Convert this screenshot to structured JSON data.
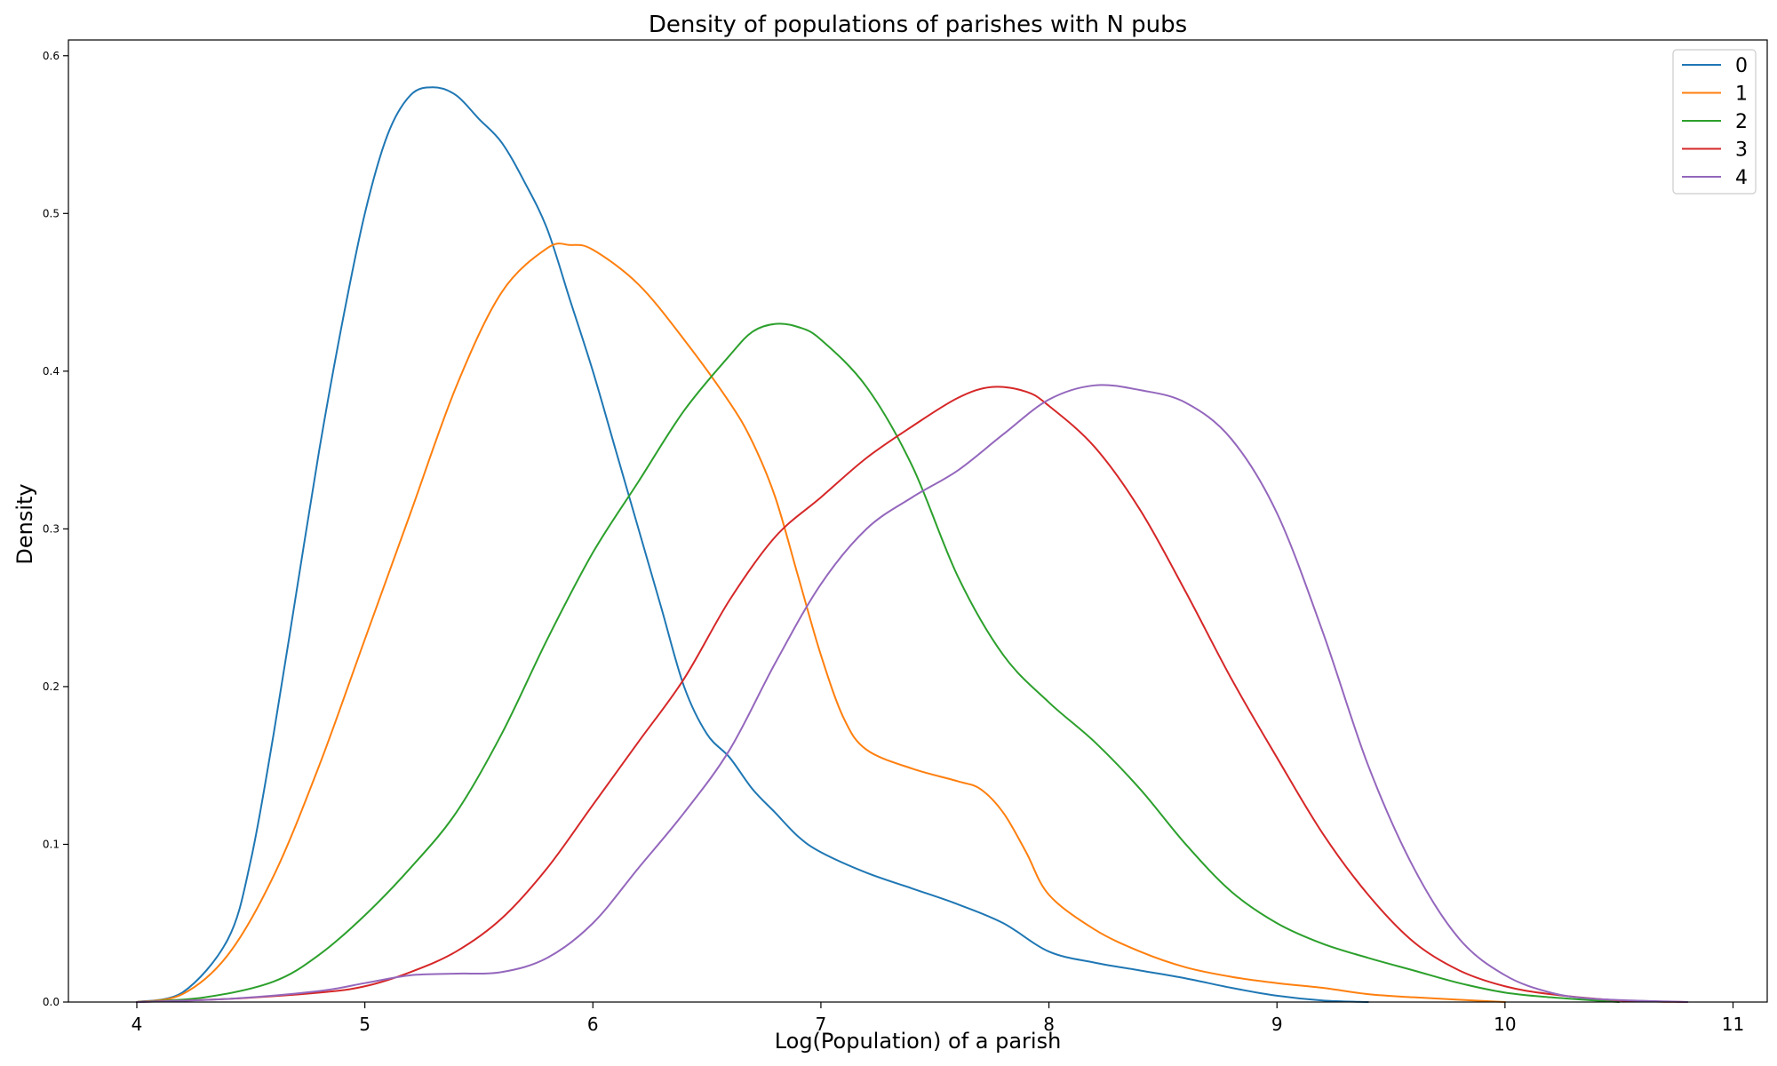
{
  "chart_data": {
    "type": "line",
    "title": "Density of populations of parishes with N pubs",
    "xlabel": "Log(Population) of a parish",
    "ylabel": "Density",
    "xlim": [
      3.7,
      11.15
    ],
    "ylim": [
      0,
      0.61
    ],
    "xticks": [
      4,
      5,
      6,
      7,
      8,
      9,
      10,
      11
    ],
    "yticks": [
      0.0,
      0.1,
      0.2,
      0.3,
      0.4,
      0.5,
      0.6
    ],
    "ytick_labels": [
      "0.0",
      "0.1",
      "0.2",
      "0.3",
      "0.4",
      "0.5",
      "0.6"
    ],
    "grid": false,
    "legend_position": "top-right",
    "series": [
      {
        "name": "0",
        "color": "#1f77b4",
        "points": [
          [
            4.0,
            0.0
          ],
          [
            4.2,
            0.006
          ],
          [
            4.4,
            0.04
          ],
          [
            4.5,
            0.09
          ],
          [
            4.6,
            0.17
          ],
          [
            4.7,
            0.26
          ],
          [
            4.8,
            0.35
          ],
          [
            4.9,
            0.43
          ],
          [
            5.0,
            0.5
          ],
          [
            5.1,
            0.55
          ],
          [
            5.2,
            0.575
          ],
          [
            5.3,
            0.58
          ],
          [
            5.4,
            0.575
          ],
          [
            5.5,
            0.56
          ],
          [
            5.6,
            0.545
          ],
          [
            5.7,
            0.52
          ],
          [
            5.8,
            0.49
          ],
          [
            5.9,
            0.445
          ],
          [
            6.0,
            0.4
          ],
          [
            6.1,
            0.35
          ],
          [
            6.2,
            0.3
          ],
          [
            6.3,
            0.25
          ],
          [
            6.4,
            0.2
          ],
          [
            6.5,
            0.17
          ],
          [
            6.6,
            0.155
          ],
          [
            6.7,
            0.135
          ],
          [
            6.8,
            0.12
          ],
          [
            6.9,
            0.105
          ],
          [
            7.0,
            0.095
          ],
          [
            7.2,
            0.082
          ],
          [
            7.4,
            0.072
          ],
          [
            7.6,
            0.062
          ],
          [
            7.8,
            0.05
          ],
          [
            8.0,
            0.032
          ],
          [
            8.2,
            0.025
          ],
          [
            8.4,
            0.02
          ],
          [
            8.6,
            0.015
          ],
          [
            8.8,
            0.009
          ],
          [
            9.0,
            0.004
          ],
          [
            9.2,
            0.001
          ],
          [
            9.4,
            0.0
          ]
        ]
      },
      {
        "name": "1",
        "color": "#ff7f0e",
        "points": [
          [
            4.0,
            0.0
          ],
          [
            4.2,
            0.005
          ],
          [
            4.4,
            0.03
          ],
          [
            4.6,
            0.08
          ],
          [
            4.8,
            0.15
          ],
          [
            5.0,
            0.23
          ],
          [
            5.2,
            0.31
          ],
          [
            5.4,
            0.39
          ],
          [
            5.6,
            0.45
          ],
          [
            5.8,
            0.478
          ],
          [
            5.9,
            0.48
          ],
          [
            6.0,
            0.477
          ],
          [
            6.2,
            0.455
          ],
          [
            6.4,
            0.42
          ],
          [
            6.6,
            0.38
          ],
          [
            6.7,
            0.355
          ],
          [
            6.8,
            0.32
          ],
          [
            6.9,
            0.27
          ],
          [
            7.0,
            0.22
          ],
          [
            7.1,
            0.18
          ],
          [
            7.2,
            0.16
          ],
          [
            7.4,
            0.148
          ],
          [
            7.6,
            0.14
          ],
          [
            7.7,
            0.135
          ],
          [
            7.8,
            0.12
          ],
          [
            7.9,
            0.095
          ],
          [
            8.0,
            0.068
          ],
          [
            8.2,
            0.046
          ],
          [
            8.4,
            0.032
          ],
          [
            8.6,
            0.022
          ],
          [
            8.8,
            0.016
          ],
          [
            9.0,
            0.012
          ],
          [
            9.2,
            0.009
          ],
          [
            9.4,
            0.005
          ],
          [
            9.6,
            0.003
          ],
          [
            10.0,
            0.0
          ]
        ]
      },
      {
        "name": "2",
        "color": "#2ca02c",
        "points": [
          [
            4.0,
            0.0
          ],
          [
            4.3,
            0.003
          ],
          [
            4.6,
            0.013
          ],
          [
            4.8,
            0.03
          ],
          [
            5.0,
            0.055
          ],
          [
            5.2,
            0.085
          ],
          [
            5.4,
            0.12
          ],
          [
            5.6,
            0.17
          ],
          [
            5.8,
            0.23
          ],
          [
            6.0,
            0.285
          ],
          [
            6.2,
            0.33
          ],
          [
            6.4,
            0.375
          ],
          [
            6.6,
            0.41
          ],
          [
            6.7,
            0.425
          ],
          [
            6.8,
            0.43
          ],
          [
            6.9,
            0.428
          ],
          [
            7.0,
            0.42
          ],
          [
            7.2,
            0.39
          ],
          [
            7.4,
            0.34
          ],
          [
            7.6,
            0.27
          ],
          [
            7.8,
            0.22
          ],
          [
            8.0,
            0.19
          ],
          [
            8.2,
            0.165
          ],
          [
            8.4,
            0.135
          ],
          [
            8.6,
            0.1
          ],
          [
            8.8,
            0.07
          ],
          [
            9.0,
            0.05
          ],
          [
            9.2,
            0.037
          ],
          [
            9.4,
            0.028
          ],
          [
            9.6,
            0.02
          ],
          [
            9.8,
            0.012
          ],
          [
            10.0,
            0.006
          ],
          [
            10.2,
            0.003
          ],
          [
            10.5,
            0.0
          ]
        ]
      },
      {
        "name": "3",
        "color": "#d62728",
        "points": [
          [
            4.0,
            0.0
          ],
          [
            4.4,
            0.002
          ],
          [
            4.8,
            0.006
          ],
          [
            5.0,
            0.01
          ],
          [
            5.2,
            0.019
          ],
          [
            5.4,
            0.032
          ],
          [
            5.6,
            0.053
          ],
          [
            5.8,
            0.085
          ],
          [
            6.0,
            0.125
          ],
          [
            6.2,
            0.165
          ],
          [
            6.4,
            0.205
          ],
          [
            6.6,
            0.255
          ],
          [
            6.8,
            0.295
          ],
          [
            7.0,
            0.32
          ],
          [
            7.2,
            0.345
          ],
          [
            7.4,
            0.365
          ],
          [
            7.6,
            0.383
          ],
          [
            7.75,
            0.39
          ],
          [
            7.9,
            0.387
          ],
          [
            8.0,
            0.378
          ],
          [
            8.2,
            0.352
          ],
          [
            8.4,
            0.312
          ],
          [
            8.6,
            0.26
          ],
          [
            8.8,
            0.205
          ],
          [
            9.0,
            0.155
          ],
          [
            9.2,
            0.107
          ],
          [
            9.4,
            0.068
          ],
          [
            9.6,
            0.038
          ],
          [
            9.8,
            0.02
          ],
          [
            10.0,
            0.01
          ],
          [
            10.2,
            0.005
          ],
          [
            10.5,
            0.001
          ],
          [
            10.8,
            0.0
          ]
        ]
      },
      {
        "name": "4",
        "color": "#9467bd",
        "points": [
          [
            4.0,
            0.0
          ],
          [
            4.4,
            0.002
          ],
          [
            4.8,
            0.007
          ],
          [
            5.0,
            0.012
          ],
          [
            5.2,
            0.017
          ],
          [
            5.4,
            0.018
          ],
          [
            5.6,
            0.019
          ],
          [
            5.8,
            0.028
          ],
          [
            6.0,
            0.05
          ],
          [
            6.2,
            0.085
          ],
          [
            6.4,
            0.12
          ],
          [
            6.6,
            0.16
          ],
          [
            6.8,
            0.215
          ],
          [
            7.0,
            0.265
          ],
          [
            7.2,
            0.3
          ],
          [
            7.4,
            0.32
          ],
          [
            7.6,
            0.337
          ],
          [
            7.8,
            0.36
          ],
          [
            8.0,
            0.382
          ],
          [
            8.2,
            0.391
          ],
          [
            8.4,
            0.388
          ],
          [
            8.6,
            0.38
          ],
          [
            8.8,
            0.357
          ],
          [
            9.0,
            0.31
          ],
          [
            9.2,
            0.235
          ],
          [
            9.4,
            0.15
          ],
          [
            9.6,
            0.085
          ],
          [
            9.8,
            0.04
          ],
          [
            10.0,
            0.017
          ],
          [
            10.2,
            0.006
          ],
          [
            10.4,
            0.002
          ],
          [
            10.8,
            0.0
          ]
        ]
      }
    ]
  }
}
